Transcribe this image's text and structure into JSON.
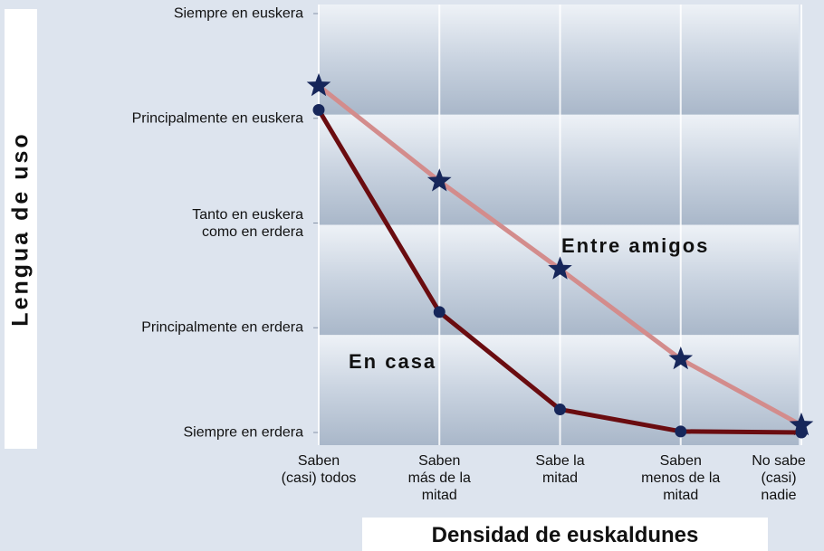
{
  "chart_data": {
    "type": "line",
    "categories": [
      "Saben\n(casi) todos",
      "Saben\nmás de la\nmitad",
      "Sabe la\nmitad",
      "Saben\nmenos de la\nmitad",
      "No sabe\n(casi)\nnadie"
    ],
    "series": [
      {
        "name": "Entre amigos",
        "color": "#d38c8c",
        "marker": "star",
        "marker_color": "#16265a",
        "values": [
          3.31,
          2.4,
          1.56,
          0.7,
          0.07
        ]
      },
      {
        "name": "En casa",
        "color": "#6a0c10",
        "marker": "circle",
        "marker_color": "#16265a",
        "values": [
          3.08,
          1.15,
          0.22,
          0.01,
          0
        ]
      }
    ],
    "ylim": [
      0,
      4
    ],
    "yticks": [
      {
        "value": 0,
        "label": "Siempre en erdera"
      },
      {
        "value": 1,
        "label": "Principalmente en erdera"
      },
      {
        "value": 2,
        "label": "Tanto en euskera\ncomo en erdera"
      },
      {
        "value": 3,
        "label": "Principalmente en euskera"
      },
      {
        "value": 4,
        "label": "Siempre en euskera"
      }
    ],
    "xlabel": "Densidad de euskaldunes",
    "ylabel": "Lengua de uso",
    "grid": true
  }
}
